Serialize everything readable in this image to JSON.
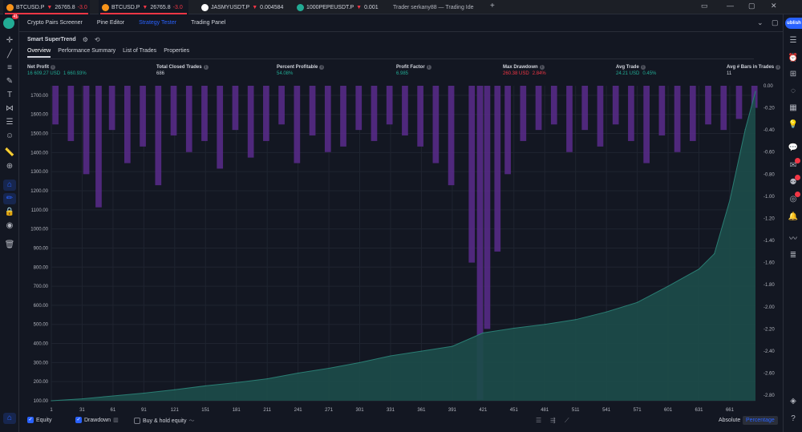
{
  "browser_tabs": [
    {
      "symbol": "BTCUSD.P",
      "arrow": "▼",
      "price": "26765.8",
      "change": "-3.0",
      "favicon_color": "#f7931a",
      "active": true
    },
    {
      "symbol": "BTCUSD.P",
      "arrow": "▼",
      "price": "26765.8",
      "change": "-3.0",
      "favicon_color": "#f7931a",
      "active": true
    },
    {
      "symbol": "JASMYUSDT.P",
      "arrow": "▼",
      "price": "0.004584",
      "change": "",
      "favicon_color": "#ffffff",
      "active": false
    },
    {
      "symbol": "1000PEPEUSDT.P",
      "arrow": "▼",
      "price": "0.001",
      "change": "",
      "favicon_color": "#22ab94",
      "active": false
    },
    {
      "symbol": "Trader serkany88 — Trading Ide",
      "arrow": "",
      "price": "",
      "change": "",
      "favicon_color": "#1c1f26",
      "active": false
    }
  ],
  "new_tab_symbol": "+",
  "publish_label": "ublish",
  "user_badge_count": "41",
  "panel_tabs": [
    "Crypto Pairs Screener",
    "Pine Editor",
    "Strategy Tester",
    "Trading Panel"
  ],
  "panel_selected_tab": "Strategy Tester",
  "strategy_name": "Smart SuperTrend",
  "sub_tabs": [
    "Overview",
    "Performance Summary",
    "List of Trades",
    "Properties"
  ],
  "metrics": {
    "net_profit": {
      "label": "Net Profit",
      "value": "16 609.27 USD",
      "pct": "1 660.93%",
      "tone": "green"
    },
    "total_closed": {
      "label": "Total Closed Trades",
      "value": "686",
      "pct": "",
      "tone": ""
    },
    "percent_profitable": {
      "label": "Percent Profitable",
      "value": "54.08%",
      "pct": "",
      "tone": "green"
    },
    "profit_factor": {
      "label": "Profit Factor",
      "value": "6.985",
      "pct": "",
      "tone": "green"
    },
    "max_drawdown": {
      "label": "Max Drawdown",
      "value": "260.38 USD",
      "pct": "2.84%",
      "tone": "red"
    },
    "avg_trade": {
      "label": "Avg Trade",
      "value": "24.21 USD",
      "pct": "0.45%",
      "tone": "green"
    },
    "avg_bars": {
      "label": "Avg # Bars in Trades",
      "value": "11",
      "pct": "",
      "tone": ""
    }
  },
  "legend": {
    "equity_label": "Equity",
    "drawdown_label": "Drawdown",
    "buy_hold_label": "Buy & hold equity",
    "equity_checked": true,
    "drawdown_checked": true,
    "buy_hold_checked": false
  },
  "modes": {
    "absolute": "Absolute",
    "percentage": "Percentage",
    "selected": "Percentage"
  },
  "colors": {
    "background": "#131722",
    "equity_fill": "#1c4c4a",
    "equity_line": "#2a7d73",
    "drawdown": "#5b2b8c",
    "accent": "#2962ff",
    "green": "#22ab94",
    "red": "#f23645"
  },
  "chart_data": {
    "type": "area",
    "title": "",
    "xlabel": "",
    "ylabel": "",
    "x_ticks": [
      1,
      31,
      61,
      91,
      121,
      151,
      181,
      211,
      241,
      271,
      301,
      331,
      361,
      391,
      421,
      451,
      481,
      511,
      541,
      571,
      601,
      631,
      661
    ],
    "x_range": [
      1,
      686
    ],
    "left_axis": {
      "range": [
        100,
        1750
      ],
      "ticks": [
        100,
        200,
        300,
        400,
        500,
        600,
        700,
        800,
        900,
        1000,
        1100,
        1200,
        1300,
        1400,
        1500,
        1600,
        1700
      ],
      "tick_labels": [
        "100.00",
        "200.00",
        "300.00",
        "400.00",
        "500.00",
        "600.00",
        "700.00",
        "800.00",
        "900.00",
        "1000.00",
        "1100.00",
        "1200.00",
        "1300.00",
        "1400.00",
        "1500.00",
        "1600.00",
        "1700.00"
      ]
    },
    "right_axis": {
      "range": [
        -2.85,
        0
      ],
      "ticks": [
        0,
        -0.2,
        -0.4,
        -0.6,
        -0.8,
        -1.0,
        -1.2,
        -1.4,
        -1.6,
        -1.8,
        -2.0,
        -2.2,
        -2.4,
        -2.6,
        -2.8
      ],
      "tick_labels": [
        "0.00",
        "-0.20",
        "-0.40",
        "-0.60",
        "-0.80",
        "-1.00",
        "-1.20",
        "-1.40",
        "-1.60",
        "-1.80",
        "-2.00",
        "-2.20",
        "-2.40",
        "-2.60",
        "-2.80"
      ]
    },
    "series": [
      {
        "name": "Equity",
        "axis": "left",
        "points": [
          [
            1,
            100
          ],
          [
            31,
            110
          ],
          [
            61,
            125
          ],
          [
            91,
            140
          ],
          [
            121,
            158
          ],
          [
            151,
            178
          ],
          [
            181,
            195
          ],
          [
            211,
            215
          ],
          [
            241,
            245
          ],
          [
            271,
            270
          ],
          [
            301,
            300
          ],
          [
            331,
            335
          ],
          [
            361,
            360
          ],
          [
            391,
            385
          ],
          [
            421,
            455
          ],
          [
            451,
            480
          ],
          [
            481,
            500
          ],
          [
            511,
            525
          ],
          [
            541,
            565
          ],
          [
            571,
            615
          ],
          [
            601,
            700
          ],
          [
            631,
            790
          ],
          [
            646,
            870
          ],
          [
            661,
            1150
          ],
          [
            676,
            1520
          ],
          [
            686,
            1720
          ]
        ]
      },
      {
        "name": "Drawdown",
        "axis": "right",
        "points": [
          [
            5,
            -0.35
          ],
          [
            20,
            -0.5
          ],
          [
            35,
            -0.8
          ],
          [
            47,
            -1.1
          ],
          [
            60,
            -0.4
          ],
          [
            75,
            -0.7
          ],
          [
            90,
            -0.55
          ],
          [
            105,
            -0.9
          ],
          [
            120,
            -0.45
          ],
          [
            135,
            -0.6
          ],
          [
            150,
            -0.5
          ],
          [
            165,
            -0.75
          ],
          [
            180,
            -0.4
          ],
          [
            195,
            -0.65
          ],
          [
            210,
            -0.5
          ],
          [
            225,
            -0.35
          ],
          [
            240,
            -0.7
          ],
          [
            255,
            -0.45
          ],
          [
            270,
            -0.6
          ],
          [
            285,
            -0.55
          ],
          [
            300,
            -0.4
          ],
          [
            315,
            -0.5
          ],
          [
            330,
            -0.35
          ],
          [
            345,
            -0.45
          ],
          [
            360,
            -0.55
          ],
          [
            375,
            -0.7
          ],
          [
            390,
            -0.9
          ],
          [
            410,
            -1.6
          ],
          [
            418,
            -2.84
          ],
          [
            425,
            -2.2
          ],
          [
            435,
            -1.5
          ],
          [
            445,
            -0.8
          ],
          [
            460,
            -0.5
          ],
          [
            475,
            -0.4
          ],
          [
            490,
            -0.35
          ],
          [
            505,
            -0.6
          ],
          [
            520,
            -0.4
          ],
          [
            535,
            -0.55
          ],
          [
            550,
            -0.35
          ],
          [
            565,
            -0.5
          ],
          [
            580,
            -0.7
          ],
          [
            595,
            -0.45
          ],
          [
            610,
            -0.6
          ],
          [
            625,
            -0.5
          ],
          [
            640,
            -0.35
          ],
          [
            655,
            -0.4
          ],
          [
            670,
            -0.3
          ],
          [
            685,
            -0.2
          ]
        ]
      }
    ],
    "grid": true,
    "legend": "bottom-left"
  }
}
